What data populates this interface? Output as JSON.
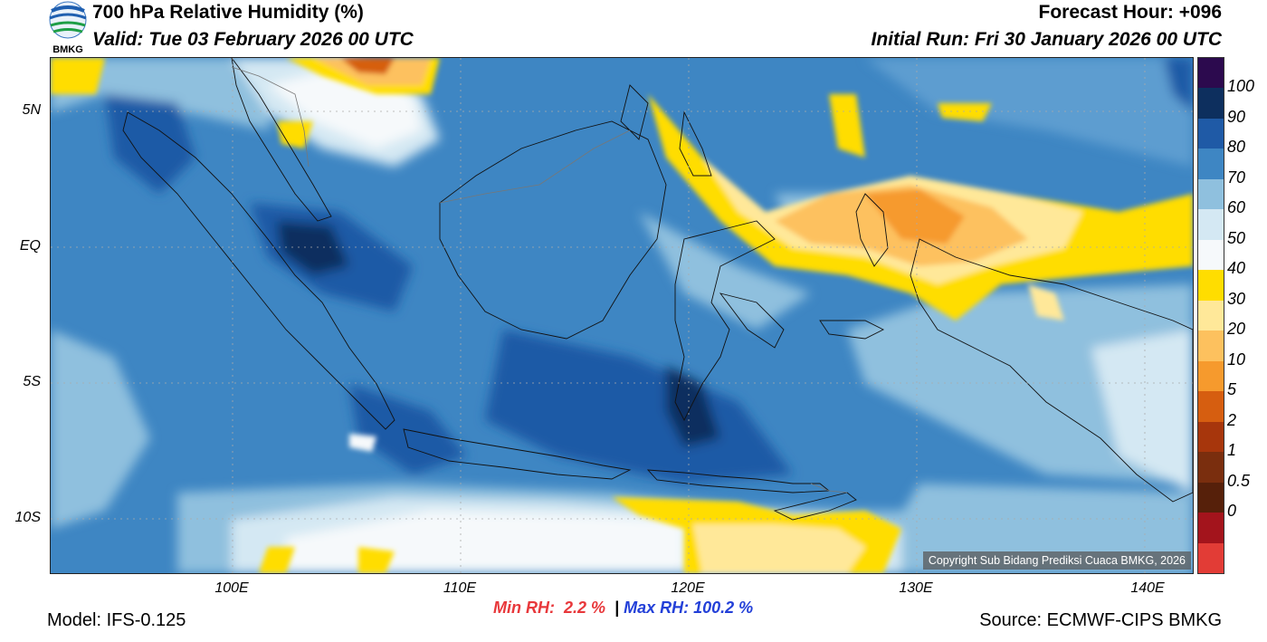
{
  "header": {
    "title": "700 hPa Relative Humidity (%)",
    "valid": "Valid: Tue 03 February 2026 00 UTC",
    "forecast_hour": "Forecast Hour: +096",
    "initial_run": "Initial Run: Fri 30 January 2026 00 UTC",
    "logo_text": "BMKG"
  },
  "map": {
    "lat_labels": [
      "5N",
      "EQ",
      "5S",
      "10S"
    ],
    "lon_labels": [
      "100E",
      "110E",
      "120E",
      "130E",
      "140E"
    ],
    "copyright": "Copyright Sub Bidang Prediksi Cuaca BMKG, 2026"
  },
  "colorbar": {
    "labels": [
      "100",
      "90",
      "80",
      "70",
      "60",
      "50",
      "40",
      "30",
      "20",
      "10",
      "5",
      "2",
      "1",
      "0.5",
      "0"
    ],
    "colors": [
      "#2c0a4e",
      "#0d2f5e",
      "#1f5aa6",
      "#3e86c3",
      "#8fc0de",
      "#d4e8f3",
      "#f6f9fb",
      "#ffdd00",
      "#ffe899",
      "#fdc15e",
      "#f69a2d",
      "#d65e10",
      "#a7360c",
      "#7a2e0e",
      "#56200a",
      "#a3141c",
      "#e23c36"
    ]
  },
  "stats": {
    "min_label": "Min RH:",
    "min_value": "2.2 %",
    "separator": "|",
    "max_label": "Max RH:",
    "max_value": "100.2 %"
  },
  "footer": {
    "model": "Model: IFS-0.125",
    "source": "Source: ECMWF-CIPS BMKG"
  }
}
